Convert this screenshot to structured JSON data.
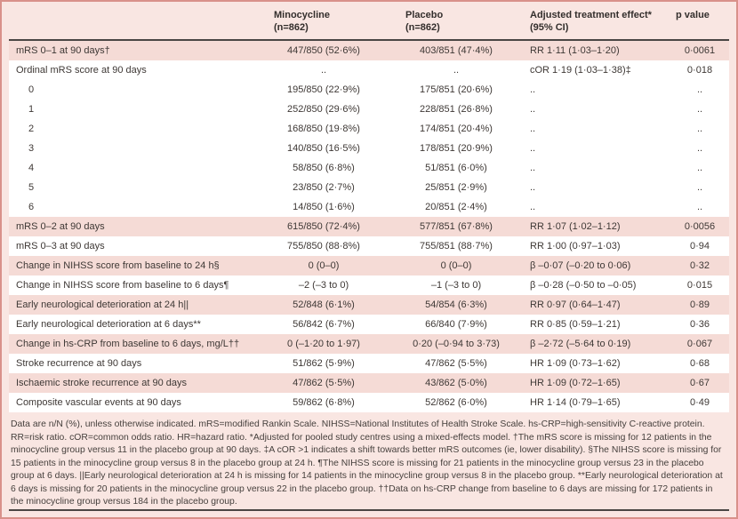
{
  "colors": {
    "table_background": "#f9e6e2",
    "stripe_pink": "#f5dbd6",
    "stripe_white": "#ffffff",
    "frame_border": "#d9918a",
    "rule_dark": "#4a4644",
    "text": "#3e3835"
  },
  "table": {
    "columns": {
      "minocycline": {
        "line1": "Minocycline",
        "line2": "(n=862)"
      },
      "placebo": {
        "line1": "Placebo",
        "line2": "(n=862)"
      },
      "effect": {
        "line1": "Adjusted treatment effect*",
        "line2": "(95% CI)"
      },
      "pvalue": {
        "line1": "p value",
        "line2": ""
      }
    },
    "rows": [
      {
        "label": "mRS 0–1 at 90 days†",
        "minocycline": "447/850 (52·6%)",
        "placebo": "403/851 (47·4%)",
        "effect": "RR 1·11 (1·03–1·20)",
        "p": "0·0061",
        "indent": false,
        "shade": "pink"
      },
      {
        "label": "Ordinal mRS score at 90 days",
        "minocycline": "..",
        "placebo": "..",
        "effect": "cOR 1·19 (1·03–1·38)‡",
        "p": "0·018",
        "indent": false,
        "shade": "white"
      },
      {
        "label": "0",
        "minocycline": "195/850 (22·9%)",
        "placebo": "175/851 (20·6%)",
        "effect": "..",
        "p": "..",
        "indent": true,
        "shade": "white"
      },
      {
        "label": "1",
        "minocycline": "252/850 (29·6%)",
        "placebo": "228/851 (26·8%)",
        "effect": "..",
        "p": "..",
        "indent": true,
        "shade": "white"
      },
      {
        "label": "2",
        "minocycline": "168/850 (19·8%)",
        "placebo": "174/851 (20·4%)",
        "effect": "..",
        "p": "..",
        "indent": true,
        "shade": "white"
      },
      {
        "label": "3",
        "minocycline": "140/850 (16·5%)",
        "placebo": "178/851 (20·9%)",
        "effect": "..",
        "p": "..",
        "indent": true,
        "shade": "white"
      },
      {
        "label": "4",
        "minocycline": "58/850 (6·8%)",
        "placebo": "51/851 (6·0%)",
        "effect": "..",
        "p": "..",
        "indent": true,
        "shade": "white"
      },
      {
        "label": "5",
        "minocycline": "23/850 (2·7%)",
        "placebo": "25/851 (2·9%)",
        "effect": "..",
        "p": "..",
        "indent": true,
        "shade": "white"
      },
      {
        "label": "6",
        "minocycline": "14/850 (1·6%)",
        "placebo": "20/851 (2·4%)",
        "effect": "..",
        "p": "..",
        "indent": true,
        "shade": "white"
      },
      {
        "label": "mRS 0–2 at 90 days",
        "minocycline": "615/850 (72·4%)",
        "placebo": "577/851 (67·8%)",
        "effect": "RR 1·07 (1·02–1·12)",
        "p": "0·0056",
        "indent": false,
        "shade": "pink"
      },
      {
        "label": "mRS 0–3 at 90 days",
        "minocycline": "755/850 (88·8%)",
        "placebo": "755/851 (88·7%)",
        "effect": "RR 1·00 (0·97–1·03)",
        "p": "0·94",
        "indent": false,
        "shade": "white"
      },
      {
        "label": "Change in NIHSS score from baseline to 24 h§",
        "minocycline": "0 (0–0)",
        "placebo": "0 (0–0)",
        "effect": "β –0·07 (–0·20 to 0·06)",
        "p": "0·32",
        "indent": false,
        "shade": "pink"
      },
      {
        "label": "Change in NIHSS score from baseline to 6 days¶",
        "minocycline": "–2 (–3 to 0)",
        "placebo": "–1 (–3 to 0)",
        "effect": "β –0·28 (–0·50 to –0·05)",
        "p": "0·015",
        "indent": false,
        "shade": "white"
      },
      {
        "label": "Early neurological deterioration at 24 h||",
        "minocycline": "52/848 (6·1%)",
        "placebo": "54/854 (6·3%)",
        "effect": "RR 0·97 (0·64–1·47)",
        "p": "0·89",
        "indent": false,
        "shade": "pink"
      },
      {
        "label": "Early neurological deterioration at 6 days**",
        "minocycline": "56/842 (6·7%)",
        "placebo": "66/840 (7·9%)",
        "effect": "RR 0·85 (0·59–1·21)",
        "p": "0·36",
        "indent": false,
        "shade": "white"
      },
      {
        "label": "Change in hs-CRP from baseline to 6 days, mg/L††",
        "minocycline": "0 (–1·20 to 1·97)",
        "placebo": "0·20 (–0·94 to 3·73)",
        "effect": "β –2·72 (–5·64 to 0·19)",
        "p": "0·067",
        "indent": false,
        "shade": "pink"
      },
      {
        "label": "Stroke recurrence at 90 days",
        "minocycline": "51/862 (5·9%)",
        "placebo": "47/862 (5·5%)",
        "effect": "HR 1·09 (0·73–1·62)",
        "p": "0·68",
        "indent": false,
        "shade": "white"
      },
      {
        "label": "Ischaemic stroke recurrence at 90 days",
        "minocycline": "47/862 (5·5%)",
        "placebo": "43/862 (5·0%)",
        "effect": "HR 1·09 (0·72–1·65)",
        "p": "0·67",
        "indent": false,
        "shade": "pink"
      },
      {
        "label": "Composite vascular events at 90 days",
        "minocycline": "59/862 (6·8%)",
        "placebo": "52/862 (6·0%)",
        "effect": "HR 1·14 (0·79–1·65)",
        "p": "0·49",
        "indent": false,
        "shade": "white"
      }
    ],
    "footnote": "Data are n/N (%), unless otherwise indicated. mRS=modified Rankin Scale. NIHSS=National Institutes of Health Stroke Scale. hs-CRP=high-sensitivity C-reactive protein. RR=risk ratio. cOR=common odds ratio. HR=hazard ratio. *Adjusted for pooled study centres using a mixed-effects model. †The mRS score is missing for 12 patients in the minocycline group versus 11 in the placebo group at 90 days. ‡A cOR >1 indicates a shift towards better mRS outcomes (ie, lower disability). §The NIHSS score is missing for 15 patients in the minocycline group versus 8 in the placebo group at 24 h. ¶The NIHSS score is missing for 21 patients in the minocycline group versus 23 in the placebo group at 6 days. ||Early neurological deterioration at 24 h is missing for 14 patients in the minocycline group versus 8 in the placebo group. **Early neurological deterioration at 6 days is missing for 20 patients in the minocycline group versus 22 in the placebo group. ††Data on hs-CRP change from baseline to 6 days are missing for 172 patients in the minocycline group versus 184 in the placebo group."
  }
}
